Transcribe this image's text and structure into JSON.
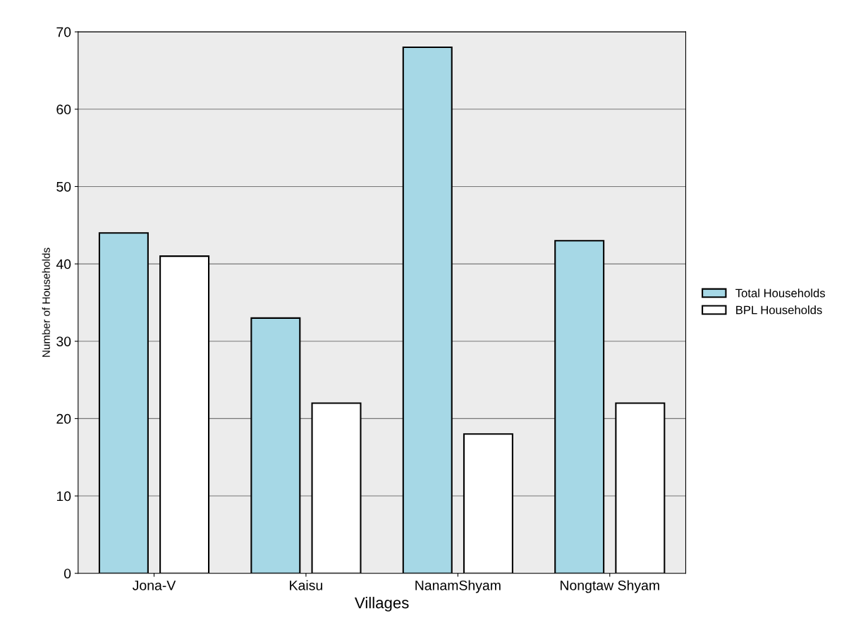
{
  "chart_data": {
    "type": "bar",
    "xlabel": "Villages",
    "ylabel": "Number of Households",
    "categories": [
      "Jona-V",
      "Kaisu",
      "NanamShyam",
      "Nongtaw Shyam"
    ],
    "series": [
      {
        "name": "Total Households",
        "color": "#a6d8e6",
        "values": [
          44,
          33,
          68,
          43
        ]
      },
      {
        "name": "BPL Households",
        "color": "#ffffff",
        "values": [
          41,
          22,
          18,
          22
        ]
      }
    ],
    "ylim": [
      0,
      70
    ],
    "yticks": [
      0,
      10,
      20,
      30,
      40,
      50,
      60,
      70
    ],
    "grid": "y",
    "legend": "right"
  }
}
